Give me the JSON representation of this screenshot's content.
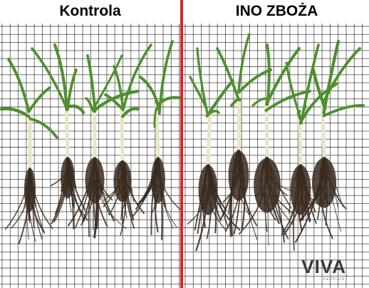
{
  "labels": {
    "left": "Kontrola",
    "right": "INO ZBOŻA"
  },
  "brand": {
    "logo_text": "VIVA",
    "logo_subtext": "FERTILIS"
  },
  "colors": {
    "divider": "#d9252b",
    "grid_line": "#2b2b2b",
    "background": "#ffffff",
    "leaf": "#4f8f2f",
    "stem": "#e8e6c8",
    "root": "#3a2a1e"
  }
}
